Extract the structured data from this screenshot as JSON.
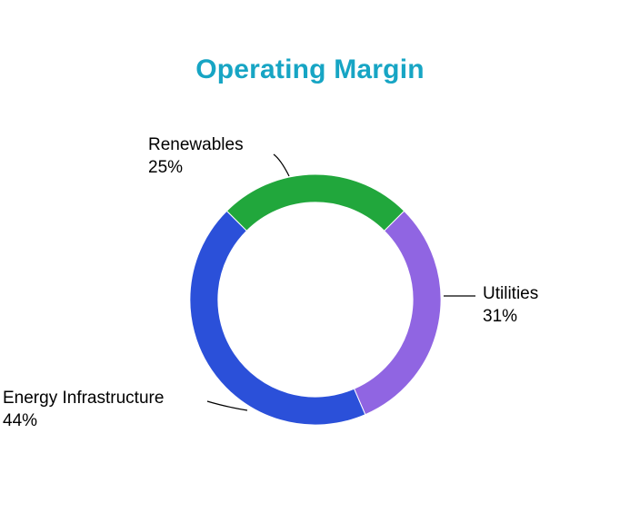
{
  "title": {
    "text": "Operating Margin",
    "color": "#17a5c4"
  },
  "chart_data": {
    "type": "pie",
    "title": "Operating Margin",
    "labels": [
      "Renewables",
      "Utilities",
      "Energy Infrastructure"
    ],
    "values": [
      25,
      31,
      44
    ],
    "pct_labels": [
      "25%",
      "31%",
      "44%"
    ],
    "colors": [
      "#21a73c",
      "#9065e2",
      "#2b50d9"
    ],
    "hole": 0.775,
    "start_angle_deg": 135,
    "direction": "clockwise",
    "legend": "none",
    "label_style": "outside-with-leader-lines",
    "leader_line_color": "#000000",
    "text_color": "#000000",
    "background": "#ffffff"
  }
}
